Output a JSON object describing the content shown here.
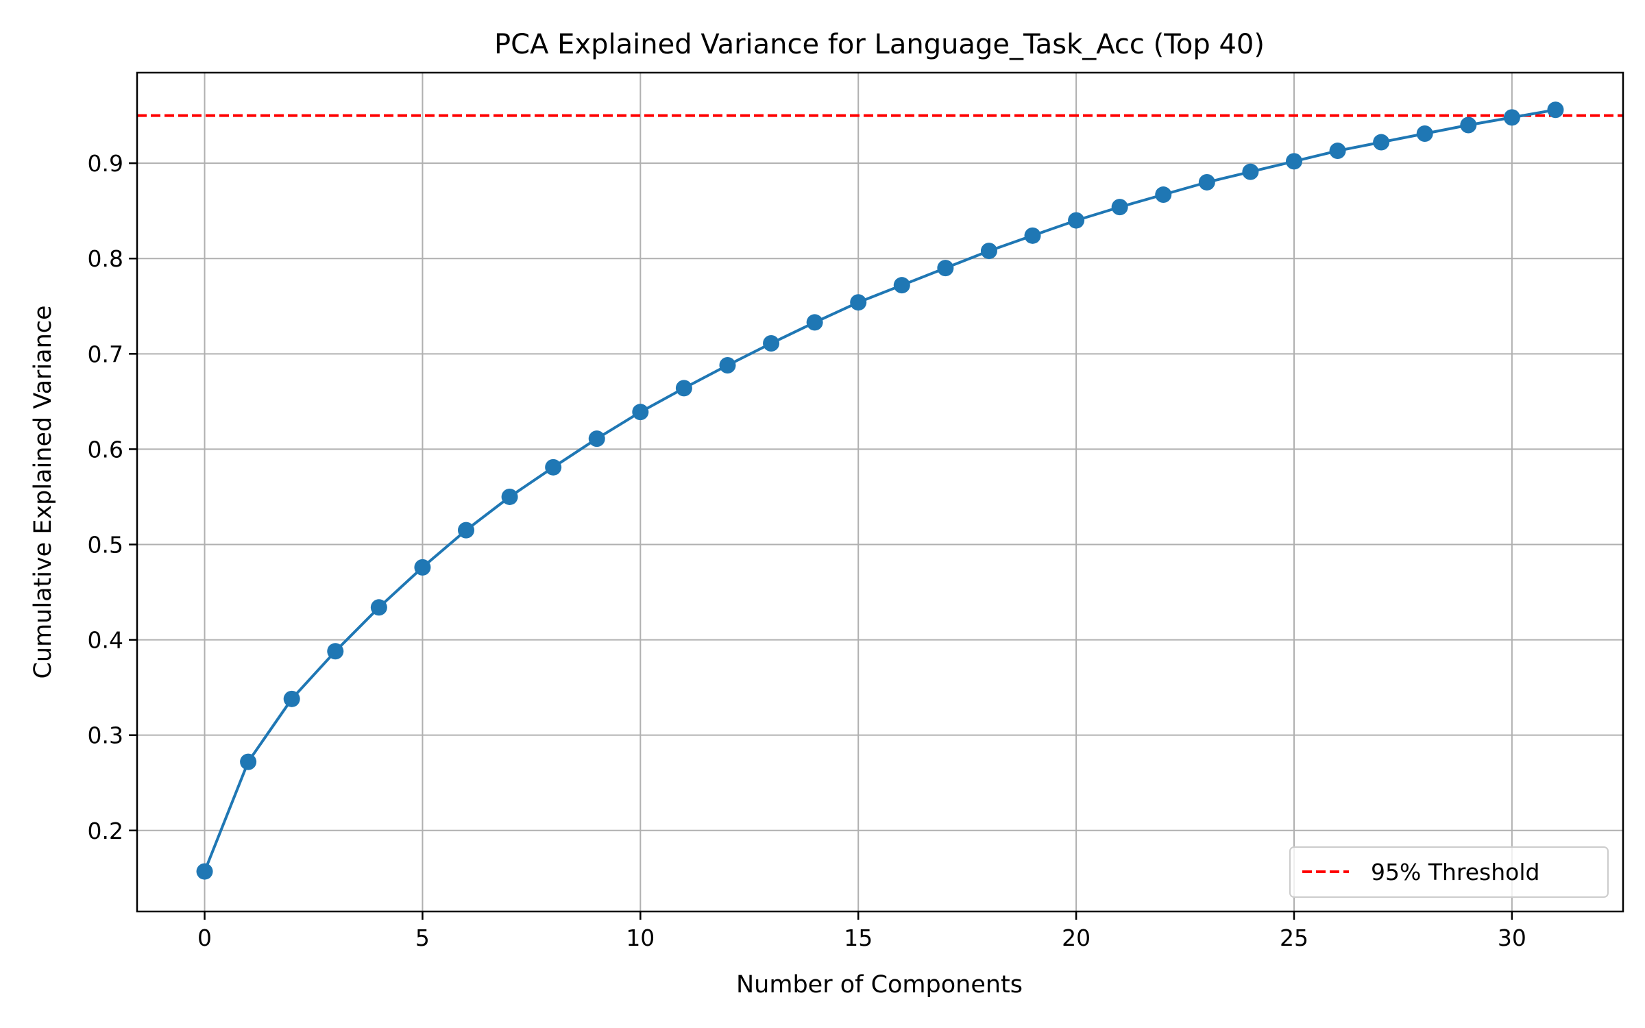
{
  "chart_data": {
    "type": "line",
    "title": "PCA Explained Variance for Language_Task_Acc (Top 40)",
    "xlabel": "Number of Components",
    "ylabel": "Cumulative Explained Variance",
    "xlim": [
      -1.55,
      32.55
    ],
    "ylim": [
      0.115,
      0.995
    ],
    "xticks": [
      0,
      5,
      10,
      15,
      20,
      25,
      30
    ],
    "xtick_labels": [
      "0",
      "5",
      "10",
      "15",
      "20",
      "25",
      "30"
    ],
    "yticks": [
      0.2,
      0.3,
      0.4,
      0.5,
      0.6,
      0.7,
      0.8,
      0.9
    ],
    "ytick_labels": [
      "0.2",
      "0.3",
      "0.4",
      "0.5",
      "0.6",
      "0.7",
      "0.8",
      "0.9"
    ],
    "grid": true,
    "legend_position": "lower-right",
    "series": [
      {
        "color": "#1f77b4",
        "marker": "circle",
        "x": [
          0,
          1,
          2,
          3,
          4,
          5,
          6,
          7,
          8,
          9,
          10,
          11,
          12,
          13,
          14,
          15,
          16,
          17,
          18,
          19,
          20,
          21,
          22,
          23,
          24,
          25,
          26,
          27,
          28,
          29,
          30,
          31
        ],
        "values": [
          0.157,
          0.272,
          0.338,
          0.388,
          0.434,
          0.476,
          0.515,
          0.55,
          0.581,
          0.611,
          0.639,
          0.664,
          0.688,
          0.711,
          0.733,
          0.754,
          0.772,
          0.79,
          0.808,
          0.824,
          0.84,
          0.854,
          0.867,
          0.88,
          0.891,
          0.902,
          0.913,
          0.922,
          0.931,
          0.94,
          0.948,
          0.956
        ]
      }
    ],
    "threshold": {
      "value": 0.95,
      "label": "95% Threshold",
      "color": "#ff0000",
      "style": "dashed"
    }
  }
}
